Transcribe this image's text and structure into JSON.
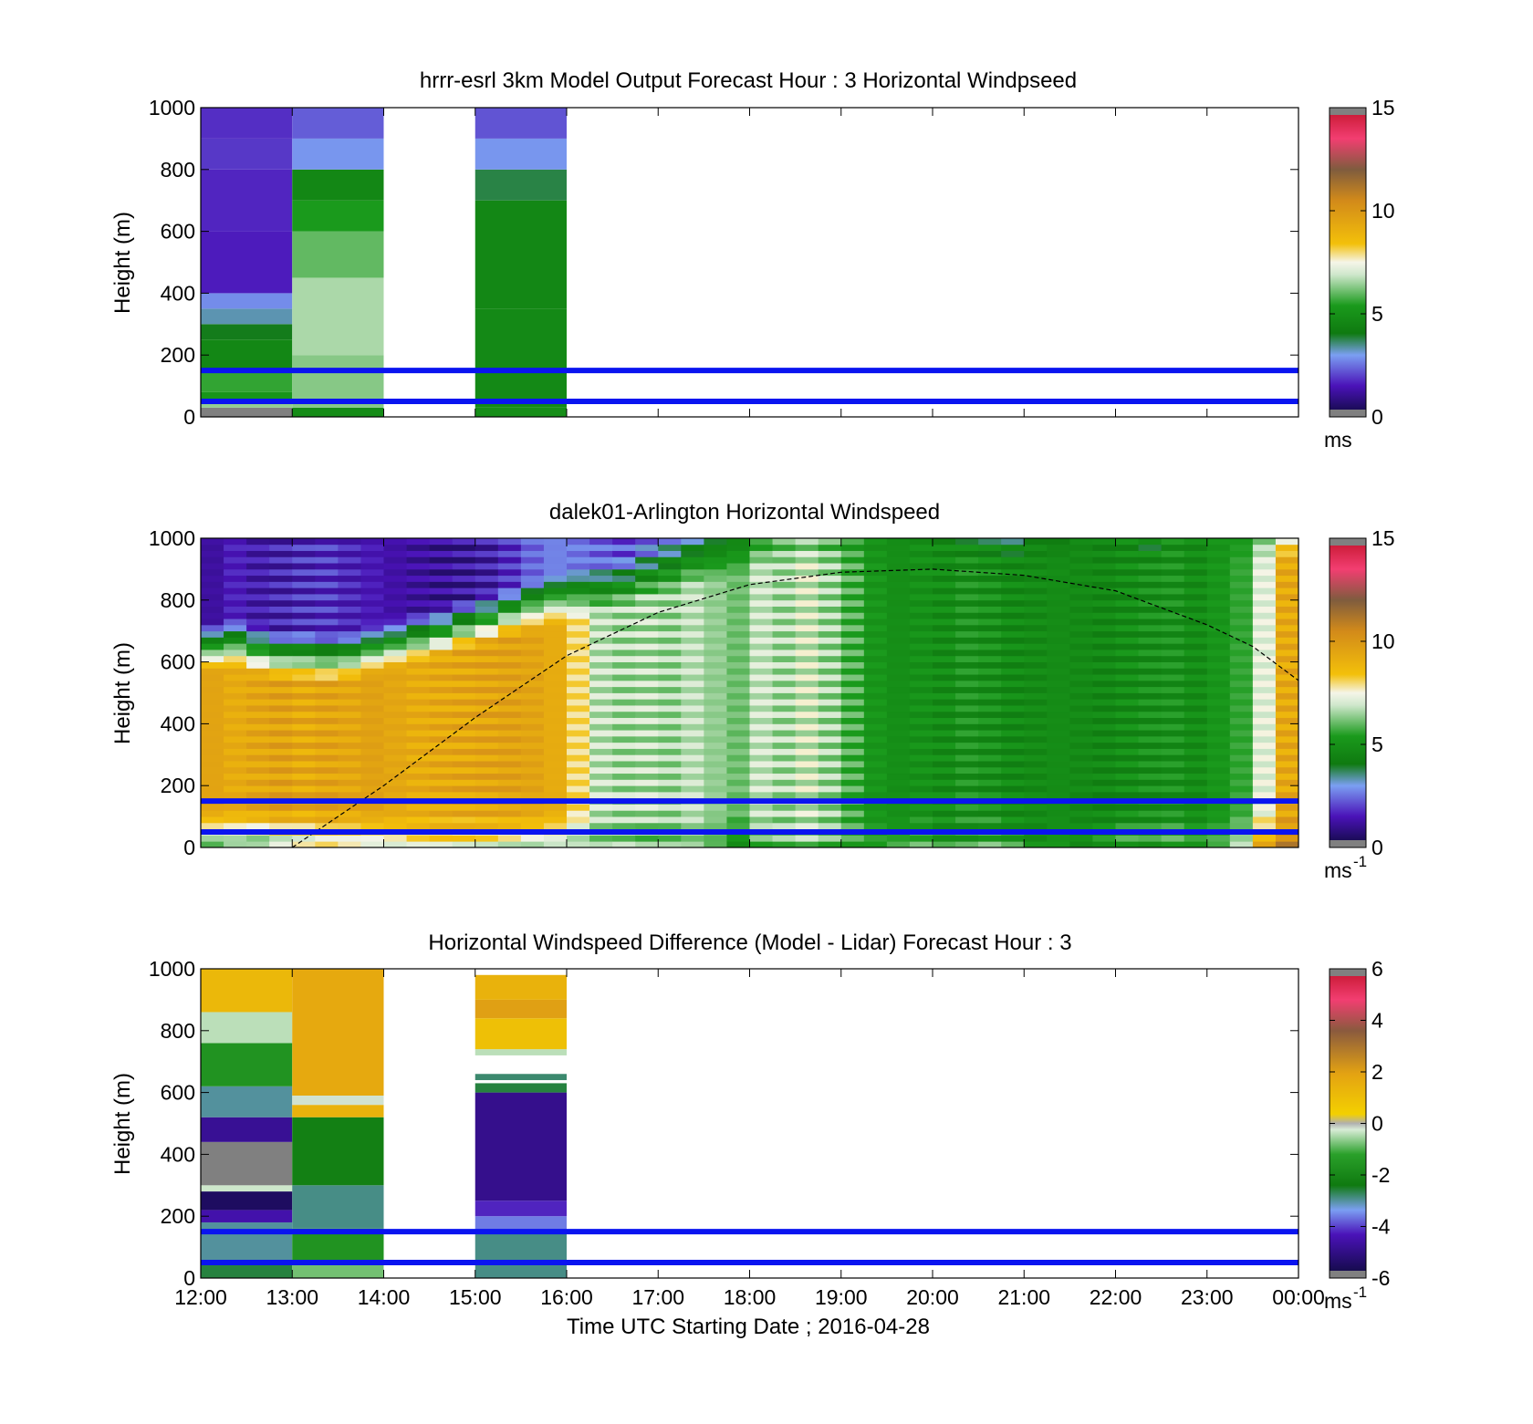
{
  "chart_data": [
    {
      "type": "heatmap",
      "title": "hrrr-esrl 3km Model Output   Forecast Hour : 3 Horizontal Windpseed",
      "ylabel": "Height (m)",
      "xlabel": "",
      "ylim": [
        0,
        1000
      ],
      "yticks": [
        "0",
        "200",
        "400",
        "600",
        "800",
        "1000"
      ],
      "xlim_hours": [
        12,
        24
      ],
      "colorbar": {
        "range": [
          0,
          15
        ],
        "ticks": [
          "0",
          "5",
          "10",
          "15"
        ],
        "unit": "ms",
        "unit_sup": "",
        "palette": "speed"
      },
      "reference_lines_m": [
        50,
        150
      ],
      "columns": [
        {
          "x_start": 12,
          "x_end": 13,
          "cells": [
            {
              "y0": 0,
              "y1": 30,
              "v": -1
            },
            {
              "y0": 30,
              "y1": 50,
              "v": 6.4
            },
            {
              "y0": 50,
              "y1": 80,
              "v": 5.2
            },
            {
              "y0": 80,
              "y1": 150,
              "v": 5.6
            },
            {
              "y0": 150,
              "y1": 250,
              "v": 4.6
            },
            {
              "y0": 250,
              "y1": 300,
              "v": 4.0
            },
            {
              "y0": 300,
              "y1": 350,
              "v": 3.3
            },
            {
              "y0": 350,
              "y1": 400,
              "v": 2.8
            },
            {
              "y0": 400,
              "y1": 600,
              "v": 1.6
            },
            {
              "y0": 600,
              "y1": 800,
              "v": 1.7
            },
            {
              "y0": 800,
              "y1": 900,
              "v": 1.9
            },
            {
              "y0": 900,
              "y1": 1000,
              "v": 1.8
            }
          ]
        },
        {
          "x_start": 13,
          "x_end": 14,
          "cells": [
            {
              "y0": 0,
              "y1": 30,
              "v": 4.8
            },
            {
              "y0": 30,
              "y1": 200,
              "v": 6.3
            },
            {
              "y0": 200,
              "y1": 450,
              "v": 6.6
            },
            {
              "y0": 450,
              "y1": 600,
              "v": 6.0
            },
            {
              "y0": 600,
              "y1": 700,
              "v": 5.4
            },
            {
              "y0": 700,
              "y1": 800,
              "v": 4.6
            },
            {
              "y0": 800,
              "y1": 900,
              "v": 2.9
            },
            {
              "y0": 900,
              "y1": 1000,
              "v": 2.3
            }
          ]
        },
        {
          "x_start": 15,
          "x_end": 16,
          "cells": [
            {
              "y0": 0,
              "y1": 30,
              "v": 4.9
            },
            {
              "y0": 30,
              "y1": 350,
              "v": 4.7
            },
            {
              "y0": 350,
              "y1": 700,
              "v": 4.6
            },
            {
              "y0": 700,
              "y1": 800,
              "v": 3.8
            },
            {
              "y0": 800,
              "y1": 900,
              "v": 2.9
            },
            {
              "y0": 900,
              "y1": 1000,
              "v": 2.2
            }
          ]
        }
      ]
    },
    {
      "type": "heatmap",
      "title": "dalek01-Arlington  Horizontal Windspeed",
      "ylabel": "Height (m)",
      "xlabel": "",
      "ylim": [
        0,
        1000
      ],
      "yticks": [
        "0",
        "200",
        "400",
        "600",
        "800",
        "1000"
      ],
      "xlim_hours": [
        12,
        24
      ],
      "colorbar": {
        "range": [
          0,
          15
        ],
        "ticks": [
          "0",
          "5",
          "10",
          "15"
        ],
        "unit": "ms",
        "unit_sup": "-1",
        "palette": "speed"
      },
      "reference_lines_m": [
        50,
        150
      ],
      "time_step_minutes": 15,
      "profiles": [
        {
          "hour": 12.0,
          "low": 5.5,
          "mid": 9.5,
          "top": 1.2,
          "transition_m": 650
        },
        {
          "hour": 12.25,
          "low": 6.0,
          "mid": 9.2,
          "top": 1.6,
          "transition_m": 660
        },
        {
          "hour": 12.5,
          "low": 5.8,
          "mid": 9.4,
          "top": 1.4,
          "transition_m": 640
        },
        {
          "hour": 12.75,
          "low": 6.5,
          "mid": 9.6,
          "top": 1.5,
          "transition_m": 620
        },
        {
          "hour": 13.0,
          "low": 7.0,
          "mid": 9.3,
          "top": 1.7,
          "transition_m": 620
        },
        {
          "hour": 13.25,
          "low": 7.4,
          "mid": 9.5,
          "top": 1.8,
          "transition_m": 610
        },
        {
          "hour": 13.5,
          "low": 7.2,
          "mid": 9.4,
          "top": 1.6,
          "transition_m": 620
        },
        {
          "hour": 13.75,
          "low": 6.9,
          "mid": 9.6,
          "top": 1.5,
          "transition_m": 640
        },
        {
          "hour": 14.0,
          "low": 7.0,
          "mid": 9.4,
          "top": 1.3,
          "transition_m": 660
        },
        {
          "hour": 14.25,
          "low": 7.5,
          "mid": 9.2,
          "top": 1.2,
          "transition_m": 680
        },
        {
          "hour": 14.5,
          "low": 7.6,
          "mid": 9.3,
          "top": 1.1,
          "transition_m": 700
        },
        {
          "hour": 14.75,
          "low": 7.4,
          "mid": 9.4,
          "top": 1.2,
          "transition_m": 720
        },
        {
          "hour": 15.0,
          "low": 7.2,
          "mid": 9.5,
          "top": 1.4,
          "transition_m": 740
        },
        {
          "hour": 15.25,
          "low": 6.8,
          "mid": 9.6,
          "top": 1.8,
          "transition_m": 760
        },
        {
          "hour": 15.5,
          "low": 6.5,
          "mid": 9.5,
          "top": 2.4,
          "transition_m": 780
        },
        {
          "hour": 15.75,
          "low": 6.6,
          "mid": 9.2,
          "top": 2.7,
          "transition_m": 800
        },
        {
          "hour": 16.0,
          "low": 6.4,
          "mid": 8.0,
          "top": 2.6,
          "transition_m": 820
        },
        {
          "hour": 16.25,
          "low": 6.2,
          "mid": 6.8,
          "top": 2.4,
          "transition_m": 840
        },
        {
          "hour": 16.5,
          "low": 6.3,
          "mid": 6.6,
          "top": 2.2,
          "transition_m": 860
        },
        {
          "hour": 16.75,
          "low": 6.0,
          "mid": 6.7,
          "top": 2.6,
          "transition_m": 880
        },
        {
          "hour": 17.0,
          "low": 6.1,
          "mid": 6.5,
          "top": 3.0,
          "transition_m": 900
        },
        {
          "hour": 17.25,
          "low": 6.2,
          "mid": 6.8,
          "top": 3.2,
          "transition_m": 920
        },
        {
          "hour": 17.5,
          "low": 5.8,
          "mid": 6.4,
          "top": 3.5,
          "transition_m": 940
        },
        {
          "hour": 17.75,
          "low": 4.8,
          "mid": 6.1,
          "top": 3.8,
          "transition_m": 960
        },
        {
          "hour": 18.0,
          "low": 5.7,
          "mid": 6.9,
          "top": 4.2,
          "transition_m": 980
        },
        {
          "hour": 18.25,
          "low": 6.0,
          "mid": 6.6,
          "top": 5.0,
          "transition_m": 1000
        },
        {
          "hour": 18.5,
          "low": 6.2,
          "mid": 7.0,
          "top": 5.2,
          "transition_m": 1000
        },
        {
          "hour": 18.75,
          "low": 5.9,
          "mid": 6.5,
          "top": 5.0,
          "transition_m": 1000
        },
        {
          "hour": 19.0,
          "low": 5.6,
          "mid": 5.8,
          "top": 4.9,
          "transition_m": 1000
        },
        {
          "hour": 19.25,
          "low": 5.5,
          "mid": 5.2,
          "top": 4.8,
          "transition_m": 1000
        },
        {
          "hour": 19.5,
          "low": 5.8,
          "mid": 4.9,
          "top": 4.7,
          "transition_m": 1000
        },
        {
          "hour": 19.75,
          "low": 6.0,
          "mid": 5.0,
          "top": 4.8,
          "transition_m": 1000
        },
        {
          "hour": 20.0,
          "low": 5.4,
          "mid": 4.8,
          "top": 4.6,
          "transition_m": 1000
        },
        {
          "hour": 20.25,
          "low": 5.5,
          "mid": 5.0,
          "top": 3.8,
          "transition_m": 1000
        },
        {
          "hour": 20.5,
          "low": 5.9,
          "mid": 4.9,
          "top": 3.4,
          "transition_m": 1000
        },
        {
          "hour": 20.75,
          "low": 5.6,
          "mid": 4.7,
          "top": 3.0,
          "transition_m": 1000
        },
        {
          "hour": 21.0,
          "low": 5.0,
          "mid": 4.7,
          "top": 4.2,
          "transition_m": 1000
        },
        {
          "hour": 21.25,
          "low": 5.2,
          "mid": 4.8,
          "top": 3.6,
          "transition_m": 1000
        },
        {
          "hour": 21.5,
          "low": 4.8,
          "mid": 4.7,
          "top": 4.6,
          "transition_m": 1000
        },
        {
          "hour": 21.75,
          "low": 5.3,
          "mid": 4.6,
          "top": 4.4,
          "transition_m": 1000
        },
        {
          "hour": 22.0,
          "low": 5.6,
          "mid": 4.8,
          "top": 4.5,
          "transition_m": 1000
        },
        {
          "hour": 22.25,
          "low": 5.4,
          "mid": 4.9,
          "top": 3.4,
          "transition_m": 1000
        },
        {
          "hour": 22.5,
          "low": 5.8,
          "mid": 5.0,
          "top": 4.8,
          "transition_m": 1000
        },
        {
          "hour": 22.75,
          "low": 5.5,
          "mid": 4.8,
          "top": 4.7,
          "transition_m": 1000
        },
        {
          "hour": 23.0,
          "low": 5.9,
          "mid": 5.2,
          "top": 4.9,
          "transition_m": 1000
        },
        {
          "hour": 23.25,
          "low": 6.8,
          "mid": 5.6,
          "top": 5.0,
          "transition_m": 1000
        },
        {
          "hour": 23.5,
          "low": 9.4,
          "mid": 7.2,
          "top": 5.3,
          "transition_m": 1000
        },
        {
          "hour": 23.75,
          "low": 10.8,
          "mid": 9.3,
          "top": 6.0,
          "transition_m": 1000
        }
      ],
      "boundary_curve": {
        "style": "dashed",
        "points": [
          [
            13.0,
            0
          ],
          [
            14.0,
            200
          ],
          [
            15.0,
            420
          ],
          [
            16.0,
            620
          ],
          [
            17.0,
            760
          ],
          [
            18.0,
            850
          ],
          [
            19.0,
            890
          ],
          [
            20.0,
            900
          ],
          [
            21.0,
            880
          ],
          [
            22.0,
            830
          ],
          [
            23.0,
            720
          ],
          [
            23.5,
            650
          ],
          [
            24.0,
            540
          ]
        ]
      }
    },
    {
      "type": "heatmap",
      "title": "Horizontal Windspeed Difference (Model - Lidar) Forecast Hour : 3",
      "ylabel": "Height (m)",
      "xlabel": "Time UTC  Starting Date ; 2016-04-28",
      "ylim": [
        0,
        1000
      ],
      "yticks": [
        "0",
        "200",
        "400",
        "600",
        "800",
        "1000"
      ],
      "xticks": [
        "12:00",
        "13:00",
        "14:00",
        "15:00",
        "16:00",
        "17:00",
        "18:00",
        "19:00",
        "20:00",
        "21:00",
        "22:00",
        "23:00",
        "00:00"
      ],
      "xlim_hours": [
        12,
        24
      ],
      "colorbar": {
        "range": [
          -6,
          6
        ],
        "ticks": [
          "-6",
          "-4",
          "-2",
          "0",
          "2",
          "4",
          "6"
        ],
        "unit": "ms",
        "unit_sup": "-1",
        "palette": "diff"
      },
      "reference_lines_m": [
        50,
        150
      ],
      "columns": [
        {
          "x_start": 12,
          "x_end": 13,
          "cells": [
            {
              "y0": 0,
              "y1": 50,
              "v": -2.6
            },
            {
              "y0": 50,
              "y1": 180,
              "v": -3.0
            },
            {
              "y0": 180,
              "y1": 220,
              "v": -4.5
            },
            {
              "y0": 220,
              "y1": 280,
              "v": -5.5
            },
            {
              "y0": 280,
              "y1": 300,
              "v": -0.3
            },
            {
              "y0": 300,
              "y1": 440,
              "v": -9
            },
            {
              "y0": 440,
              "y1": 520,
              "v": -4.8
            },
            {
              "y0": 520,
              "y1": 620,
              "v": -3.0
            },
            {
              "y0": 620,
              "y1": 760,
              "v": -1.6
            },
            {
              "y0": 760,
              "y1": 860,
              "v": -0.4
            },
            {
              "y0": 860,
              "y1": 1000,
              "v": 1.2
            }
          ]
        },
        {
          "x_start": 13,
          "x_end": 14,
          "cells": [
            {
              "y0": 0,
              "y1": 50,
              "v": -0.8
            },
            {
              "y0": 50,
              "y1": 160,
              "v": -1.6
            },
            {
              "y0": 160,
              "y1": 300,
              "v": -2.9
            },
            {
              "y0": 300,
              "y1": 520,
              "v": -2.2
            },
            {
              "y0": 520,
              "y1": 560,
              "v": 1.4
            },
            {
              "y0": 560,
              "y1": 590,
              "v": -0.2
            },
            {
              "y0": 590,
              "y1": 1000,
              "v": 1.7
            }
          ]
        },
        {
          "x_start": 15,
          "x_end": 16,
          "cells": [
            {
              "y0": 0,
              "y1": 150,
              "v": -2.9
            },
            {
              "y0": 150,
              "y1": 200,
              "v": -3.6
            },
            {
              "y0": 200,
              "y1": 250,
              "v": -4.2
            },
            {
              "y0": 250,
              "y1": 600,
              "v": -4.9
            },
            {
              "y0": 600,
              "y1": 630,
              "v": -2.6
            },
            {
              "y0": 640,
              "y1": 660,
              "v": -2.8
            },
            {
              "y0": 720,
              "y1": 740,
              "v": -0.4
            },
            {
              "y0": 740,
              "y1": 840,
              "v": 0.9
            },
            {
              "y0": 840,
              "y1": 900,
              "v": 2.0
            },
            {
              "y0": 900,
              "y1": 980,
              "v": 1.4
            }
          ]
        }
      ]
    }
  ]
}
